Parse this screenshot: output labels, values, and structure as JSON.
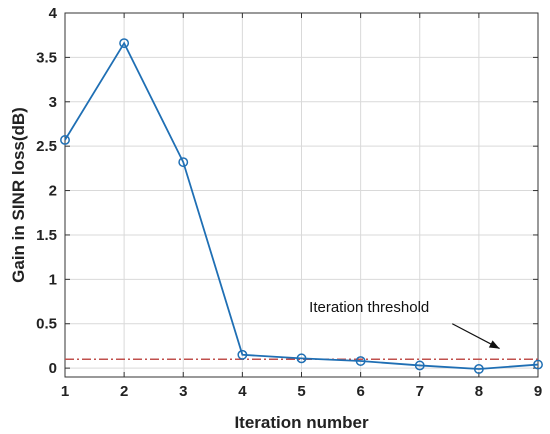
{
  "chart_data": {
    "type": "line",
    "xlabel": "Iteration number",
    "ylabel": "Gain in SINR loss(dB)",
    "xlim": [
      1,
      9
    ],
    "ylim": [
      -0.1,
      4
    ],
    "xticks": [
      "1",
      "2",
      "3",
      "4",
      "5",
      "6",
      "7",
      "8",
      "9"
    ],
    "yticks": [
      "0",
      "0.5",
      "1",
      "1.5",
      "2",
      "2.5",
      "3",
      "3.5",
      "4"
    ],
    "grid": true,
    "x": [
      1,
      2,
      3,
      4,
      5,
      6,
      7,
      8,
      9
    ],
    "series": [
      {
        "values": [
          2.57,
          3.66,
          2.32,
          0.15,
          0.11,
          0.08,
          0.03,
          -0.01,
          0.04
        ],
        "color": "#1f6fb4",
        "marker": "circle"
      }
    ],
    "threshold": {
      "value": 0.1,
      "color": "#c0504d"
    },
    "annotation": {
      "text": "Iteration threshold"
    }
  }
}
